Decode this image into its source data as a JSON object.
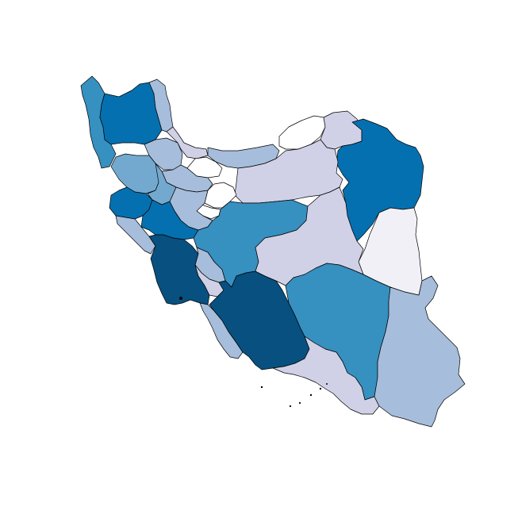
{
  "map": {
    "type": "choropleth",
    "region": "Iran provinces",
    "legend": "none",
    "palette": {
      "class_0": "#ffffff",
      "class_1": "#f0f0f6",
      "class_2": "#d0d1e6",
      "class_3": "#a6bddb",
      "class_4": "#74a9cf",
      "class_5": "#3690c0",
      "class_6": "#0570b0",
      "class_7": "#08507f"
    },
    "provinces": [
      {
        "id": "west-azerbaijan",
        "class": 5
      },
      {
        "id": "east-azerbaijan",
        "class": 6
      },
      {
        "id": "ardabil",
        "class": 3
      },
      {
        "id": "zanjan",
        "class": 3
      },
      {
        "id": "kurdistan",
        "class": 4
      },
      {
        "id": "gilan",
        "class": 2
      },
      {
        "id": "mazandaran",
        "class": 3
      },
      {
        "id": "golestan",
        "class": 0
      },
      {
        "id": "north-khorasan",
        "class": 2
      },
      {
        "id": "razavi-khorasan",
        "class": 6
      },
      {
        "id": "south-khorasan",
        "class": 1
      },
      {
        "id": "semnan",
        "class": 2
      },
      {
        "id": "tehran",
        "class": 0
      },
      {
        "id": "alborz",
        "class": 0
      },
      {
        "id": "qazvin",
        "class": 3
      },
      {
        "id": "qom",
        "class": 0
      },
      {
        "id": "markazi",
        "class": 3
      },
      {
        "id": "hamadan",
        "class": 4
      },
      {
        "id": "kermanshah",
        "class": 6
      },
      {
        "id": "ilam",
        "class": 3
      },
      {
        "id": "lorestan",
        "class": 6
      },
      {
        "id": "khuzestan",
        "class": 7
      },
      {
        "id": "isfahan",
        "class": 5
      },
      {
        "id": "chaharmahal",
        "class": 3
      },
      {
        "id": "kohgiluyeh",
        "class": 2
      },
      {
        "id": "bushehr",
        "class": 3
      },
      {
        "id": "fars",
        "class": 7
      },
      {
        "id": "yazd",
        "class": 2
      },
      {
        "id": "kerman",
        "class": 5
      },
      {
        "id": "hormozgan",
        "class": 2
      },
      {
        "id": "sistan-baluchestan",
        "class": 3
      }
    ]
  }
}
